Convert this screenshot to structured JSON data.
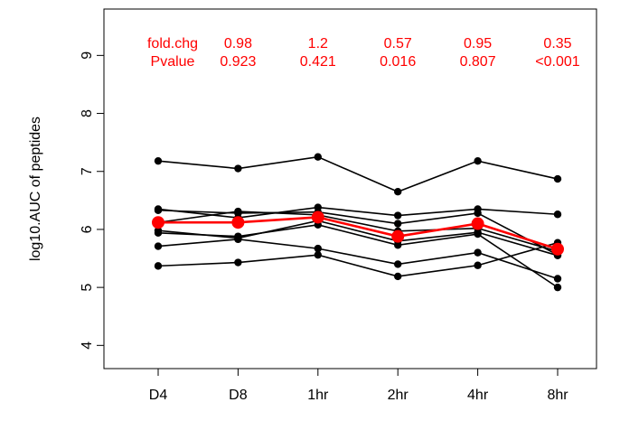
{
  "chart_data": {
    "type": "line",
    "title": "",
    "xlabel": "",
    "ylabel": "log10.AUC of peptides",
    "categories": [
      "D4",
      "D8",
      "1hr",
      "2hr",
      "4hr",
      "8hr"
    ],
    "yticks": [
      4,
      5,
      6,
      7,
      8,
      9
    ],
    "ylim": [
      3.6,
      9.8
    ],
    "grid": false,
    "series_color": "#000000",
    "mean_color": "#ff0000",
    "series": [
      {
        "values": [
          7.18,
          7.05,
          7.25,
          6.65,
          7.18,
          6.87
        ]
      },
      {
        "values": [
          6.35,
          6.2,
          6.38,
          6.24,
          6.35,
          6.26
        ]
      },
      {
        "values": [
          6.33,
          6.28,
          6.3,
          6.1,
          6.28,
          5.56
        ]
      },
      {
        "values": [
          6.12,
          6.31,
          6.25,
          5.97,
          6.02,
          5.62
        ]
      },
      {
        "values": [
          5.94,
          5.88,
          6.08,
          5.73,
          5.92,
          5.0
        ]
      },
      {
        "values": [
          5.71,
          5.83,
          5.67,
          5.4,
          5.6,
          5.15
        ]
      },
      {
        "values": [
          5.37,
          5.43,
          5.56,
          5.19,
          5.38,
          5.77
        ]
      },
      {
        "values": [
          5.98,
          5.85,
          6.15,
          5.8,
          5.95,
          5.55
        ]
      }
    ],
    "mean": {
      "values": [
        6.12,
        6.12,
        6.21,
        5.88,
        6.1,
        5.66
      ]
    },
    "annotations": {
      "row1_label": "fold.chg",
      "row2_label": "Pvalue",
      "fold_change": [
        "0.98",
        "1.2",
        "0.57",
        "0.95",
        "0.35"
      ],
      "pvalue": [
        "0.923",
        "0.421",
        "0.016",
        "0.807",
        "<0.001"
      ]
    }
  }
}
